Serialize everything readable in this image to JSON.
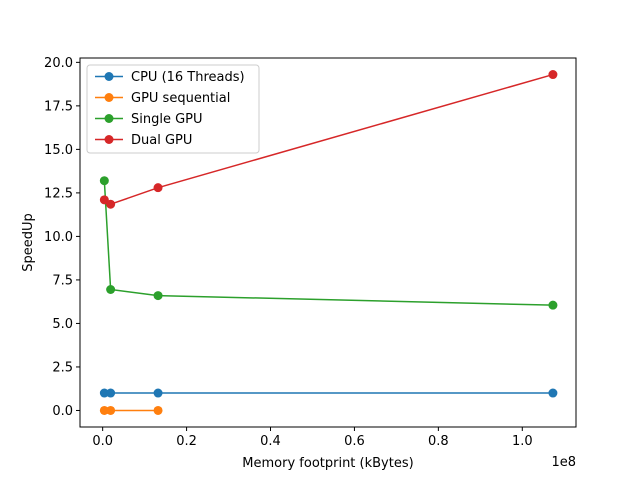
{
  "chart_data": {
    "type": "line",
    "title": "",
    "xlabel": "Memory footprint (kBytes)",
    "ylabel": "SpeedUp",
    "x_offset_label": "1e8",
    "xlim": [
      -5400000,
      112800000
    ],
    "ylim": [
      -0.95,
      20.25
    ],
    "x_ticks": [
      0,
      20000000,
      40000000,
      60000000,
      80000000,
      100000000
    ],
    "x_tick_labels": [
      "0.0",
      "0.2",
      "0.4",
      "0.6",
      "0.8",
      "1.0"
    ],
    "y_ticks": [
      0,
      2.5,
      5,
      7.5,
      10,
      12.5,
      15,
      17.5,
      20
    ],
    "y_tick_labels": [
      "0.0",
      "2.5",
      "5.0",
      "7.5",
      "10.0",
      "12.5",
      "15.0",
      "17.5",
      "20.0"
    ],
    "grid": false,
    "legend_position": "upper-left",
    "series": [
      {
        "name": "CPU (16 Threads)",
        "color": "#1f77b4",
        "x": [
          400000,
          1900000,
          13200000,
          107300000
        ],
        "y": [
          1.0,
          1.0,
          1.0,
          1.0
        ]
      },
      {
        "name": "GPU sequential",
        "color": "#ff7f0e",
        "x": [
          400000,
          1900000,
          13200000
        ],
        "y": [
          0.0,
          0.0,
          0.0
        ]
      },
      {
        "name": "Single GPU",
        "color": "#2ca02c",
        "x": [
          400000,
          1900000,
          13200000,
          107300000
        ],
        "y": [
          13.2,
          6.95,
          6.6,
          6.05
        ]
      },
      {
        "name": "Dual GPU",
        "color": "#d62728",
        "x": [
          400000,
          1900000,
          13200000,
          107300000
        ],
        "y": [
          12.1,
          11.85,
          12.8,
          19.3
        ]
      }
    ]
  }
}
